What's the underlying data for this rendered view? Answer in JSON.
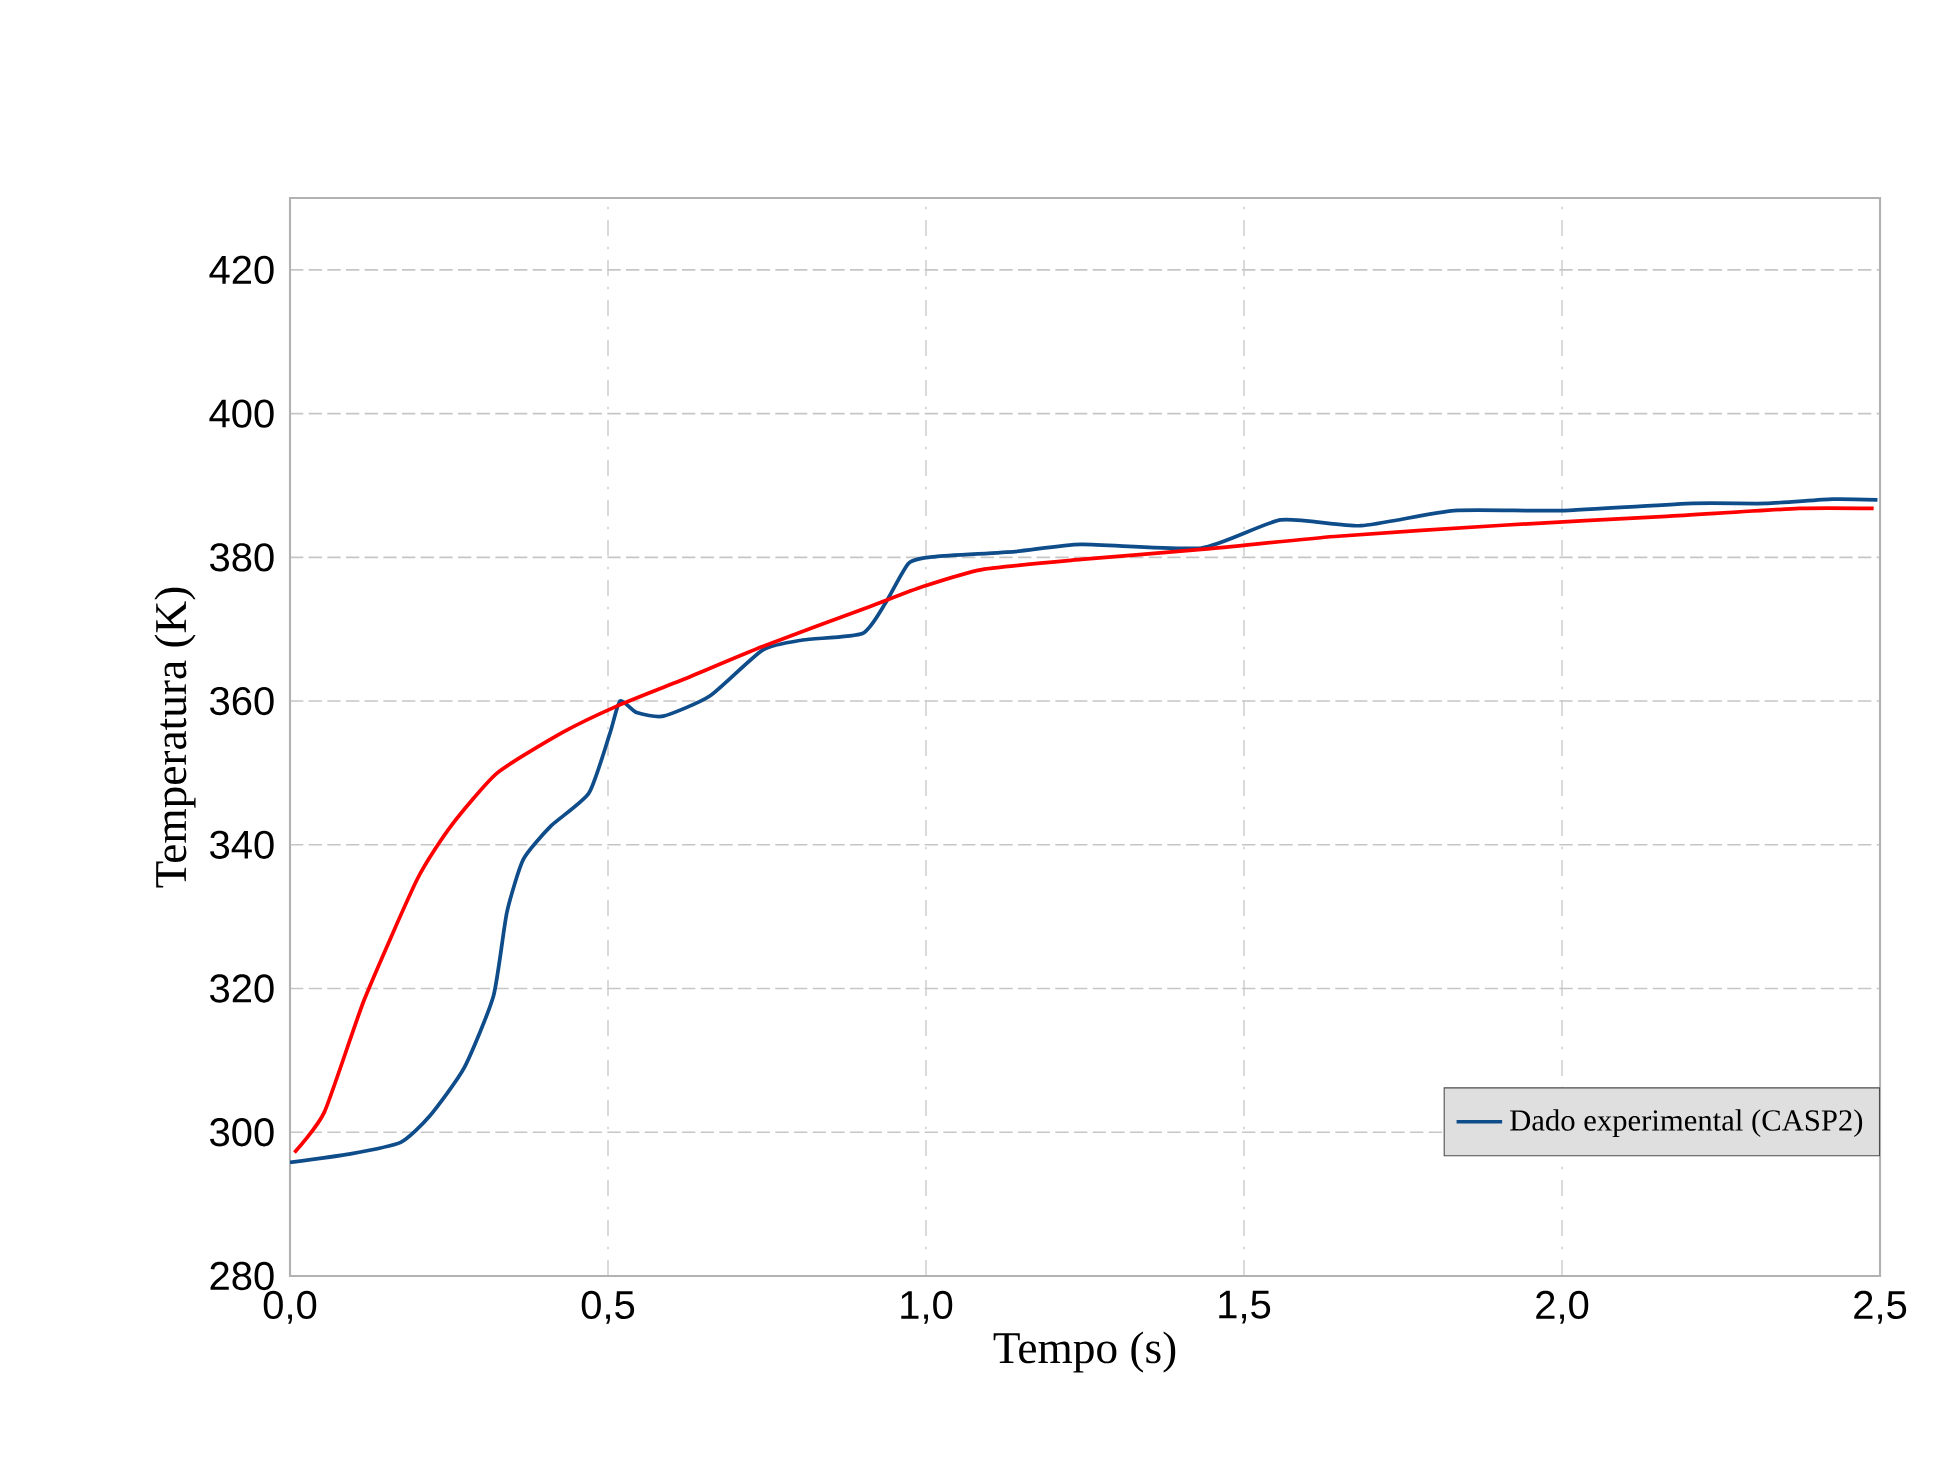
{
  "chart_data": {
    "type": "line",
    "xlabel": "Tempo (s)",
    "ylabel": "Temperatura (K)",
    "xlim": [
      0,
      2.5
    ],
    "ylim": [
      280,
      430
    ],
    "xticks": [
      {
        "value": 0,
        "label": "0,0"
      },
      {
        "value": 0.5,
        "label": "0,5"
      },
      {
        "value": 1.0,
        "label": "1,0"
      },
      {
        "value": 1.5,
        "label": "1,5"
      },
      {
        "value": 2.0,
        "label": "2,0"
      },
      {
        "value": 2.5,
        "label": "2,5"
      }
    ],
    "yticks": [
      280,
      300,
      320,
      340,
      360,
      380,
      400,
      420
    ],
    "grid": true,
    "legend": "bottom right",
    "series": [
      {
        "name": "Dado experimental (CASP2)",
        "color": "#0f4c8a",
        "x": [
          0,
          0.095,
          0.174,
          0.22,
          0.274,
          0.32,
          0.341,
          0.367,
          0.41,
          0.47,
          0.503,
          0.519,
          0.545,
          0.587,
          0.66,
          0.743,
          0.806,
          0.9,
          0.936,
          0.973,
          1.015,
          1.14,
          1.244,
          1.433,
          1.558,
          1.684,
          1.83,
          1.997,
          2.206,
          2.32,
          2.425,
          2.496
        ],
        "values": [
          295.8,
          297,
          298.6,
          302.3,
          309,
          319,
          330.6,
          338,
          342.6,
          347.2,
          355.5,
          360,
          358.4,
          357.9,
          360.7,
          367.1,
          368.5,
          369.4,
          373.6,
          379.2,
          380.1,
          380.8,
          381.8,
          381.3,
          385.2,
          384.4,
          386.5,
          386.5,
          387.5,
          387.5,
          388.1,
          388
        ]
      },
      {
        "color": "#ff0000",
        "x": [
          0.007,
          0.054,
          0.117,
          0.2,
          0.253,
          0.326,
          0.43,
          0.514,
          0.618,
          0.743,
          0.91,
          0.994,
          1.088,
          1.244,
          1.433,
          1.642,
          1.913,
          2.164,
          2.373,
          2.49
        ],
        "values": [
          297.2,
          302.8,
          318.5,
          335.2,
          342.6,
          350,
          355.7,
          359.3,
          363,
          367.6,
          373.1,
          375.9,
          378.3,
          379.7,
          381.1,
          382.9,
          384.5,
          385.7,
          386.8,
          386.8
        ]
      }
    ]
  }
}
